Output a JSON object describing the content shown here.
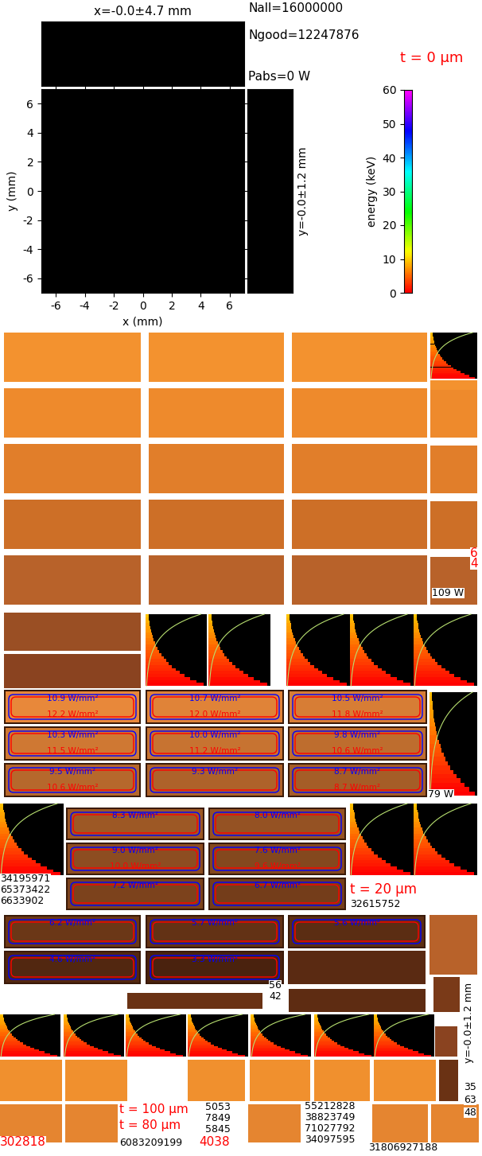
{
  "chart_data": {
    "type": "image",
    "title": "x=-0.0±4.7 mm",
    "xlabel": "x (mm)",
    "ylabel": "y (mm)",
    "side_label": "y=-0.0±1.2 mm",
    "annotations": [
      "Nall=16000000",
      "Ngood=12247876",
      "Pabs=0 W",
      "t = 0 µm"
    ],
    "xlim": [
      -7,
      7
    ],
    "ylim": [
      -7,
      7
    ],
    "xticks": [
      -6,
      -4,
      -2,
      0,
      2,
      4,
      6
    ],
    "yticks": [
      -6,
      -4,
      -2,
      0,
      2,
      4,
      6
    ],
    "colorbar": {
      "label": "energy (keV)",
      "range": [
        0,
        60
      ],
      "ticks": [
        0,
        10,
        20,
        30,
        40,
        50,
        60
      ]
    }
  },
  "collage": {
    "power_panels": [
      {
        "blue": "10.9 W/mm²",
        "red": "12.2 W/mm²"
      },
      {
        "blue": "10.7 W/mm²",
        "red": "12.0 W/mm²"
      },
      {
        "blue": "10.5 W/mm²",
        "red": "11.8 W/mm²"
      },
      {
        "blue": "10.3 W/mm²",
        "red": "11.5 W/mm²"
      },
      {
        "blue": "10.0 W/mm²",
        "red": "11.2 W/mm²"
      },
      {
        "blue": "9.8 W/mm²",
        "red": "10.6 W/mm²"
      },
      {
        "blue": "9.5 W/mm²",
        "red": "10.6 W/mm²"
      },
      {
        "blue": "9.3 W/mm²"
      },
      {
        "blue": "8.7 W/mm²",
        "red": "8.7 W/mm²"
      },
      {
        "blue": "8.3 W/mm²"
      },
      {
        "blue": "8.0 W/mm²"
      },
      {
        "blue": "9.0 W/mm²",
        "red": "10.0 W/mm²"
      },
      {
        "blue": "7.6 W/mm²",
        "red": "9.6 W/mm²"
      },
      {
        "blue": "7.2 W/mm²"
      },
      {
        "blue": "6.7 W/mm²"
      },
      {
        "blue": "6.2 W/mm²"
      },
      {
        "blue": "5.7 W/mm²"
      },
      {
        "blue": "5.6 W/mm²"
      },
      {
        "blue": "4.6 W/mm²"
      },
      {
        "blue": "3.3 W/mm²"
      }
    ],
    "labels": [
      {
        "text": "6",
        "color": "red"
      },
      {
        "text": "4",
        "color": "red"
      },
      {
        "text": "109 W",
        "color": "black"
      },
      {
        "text": "79 W",
        "color": "black"
      },
      {
        "text": "34195971",
        "color": "black"
      },
      {
        "text": "65373422",
        "color": "black"
      },
      {
        "text": "6633902",
        "color": "black"
      },
      {
        "text": "t = 20 µm",
        "color": "red"
      },
      {
        "text": "32615752",
        "color": "black"
      },
      {
        "text": "56",
        "color": "black"
      },
      {
        "text": "42",
        "color": "black"
      },
      {
        "text": "35",
        "color": "black"
      },
      {
        "text": "63",
        "color": "black"
      },
      {
        "text": "48",
        "color": "black"
      },
      {
        "text": "t = 100 µm",
        "color": "red"
      },
      {
        "text": "t = 80 µm",
        "color": "red"
      },
      {
        "text": "5053",
        "color": "black"
      },
      {
        "text": "7849",
        "color": "black"
      },
      {
        "text": "5845",
        "color": "black"
      },
      {
        "text": "6083209199",
        "color": "black"
      },
      {
        "text": "4038",
        "color": "red"
      },
      {
        "text": "302818",
        "color": "red"
      },
      {
        "text": "55212828",
        "color": "black"
      },
      {
        "text": "38823749",
        "color": "black"
      },
      {
        "text": "71027792",
        "color": "black"
      },
      {
        "text": "34097595",
        "color": "black"
      },
      {
        "text": "31806927188",
        "color": "black"
      },
      {
        "text": "y=-0.0±1.2 mm",
        "color": "black"
      }
    ]
  }
}
